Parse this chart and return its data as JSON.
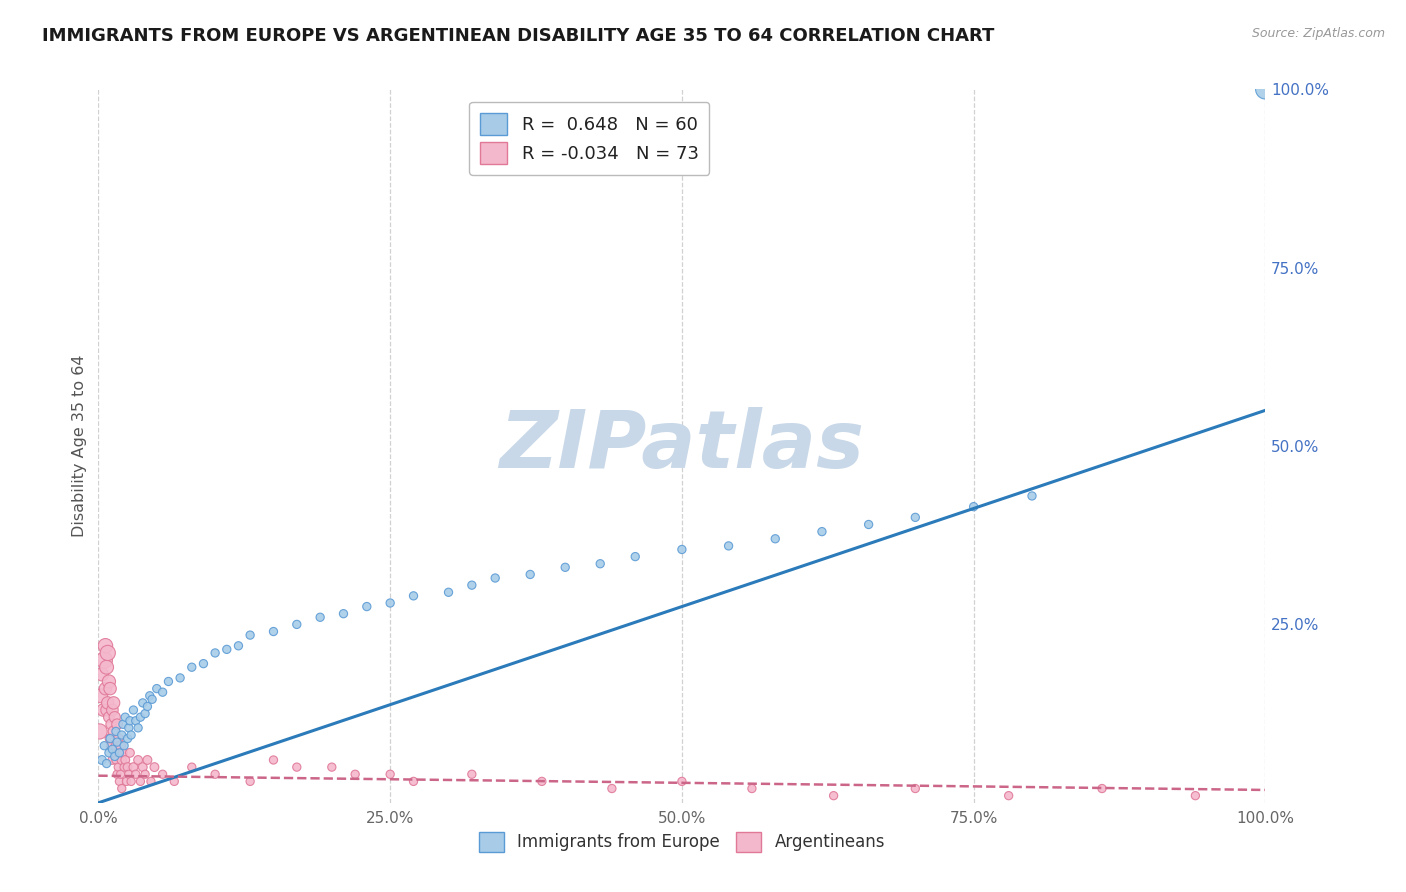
{
  "title": "IMMIGRANTS FROM EUROPE VS ARGENTINEAN DISABILITY AGE 35 TO 64 CORRELATION CHART",
  "source_text": "Source: ZipAtlas.com",
  "ylabel": "Disability Age 35 to 64",
  "xlim": [
    0,
    1.0
  ],
  "ylim": [
    0,
    1.0
  ],
  "xtick_vals": [
    0,
    0.25,
    0.5,
    0.75,
    1.0
  ],
  "xtick_labels": [
    "0.0%",
    "25.0%",
    "50.0%",
    "75.0%",
    "100.0%"
  ],
  "ytick_vals": [
    0.25,
    0.5,
    0.75,
    1.0
  ],
  "ytick_labels": [
    "25.0%",
    "50.0%",
    "75.0%",
    "100.0%"
  ],
  "blue_fill": "#a8cce8",
  "blue_edge": "#5b9bd5",
  "blue_line": "#2b7bba",
  "pink_fill": "#f4b8cc",
  "pink_edge": "#e07898",
  "pink_line": "#cc6688",
  "R_blue": 0.648,
  "N_blue": 60,
  "R_pink": -0.034,
  "N_pink": 73,
  "watermark": "ZIPatlas",
  "watermark_color": "#c8d8e8",
  "bg_color": "#ffffff",
  "grid_color": "#cccccc",
  "title_fontsize": 13,
  "axis_tick_color": "#4472c4",
  "blue_trend_y0": 0.0,
  "blue_trend_y1": 0.55,
  "pink_trend_y0": 0.038,
  "pink_trend_y1": 0.018,
  "blue_scatter_x": [
    0.003,
    0.005,
    0.007,
    0.009,
    0.01,
    0.012,
    0.014,
    0.015,
    0.016,
    0.018,
    0.02,
    0.021,
    0.022,
    0.023,
    0.025,
    0.026,
    0.027,
    0.028,
    0.03,
    0.032,
    0.034,
    0.036,
    0.038,
    0.04,
    0.042,
    0.044,
    0.046,
    0.05,
    0.055,
    0.06,
    0.07,
    0.08,
    0.09,
    0.1,
    0.11,
    0.12,
    0.13,
    0.15,
    0.17,
    0.19,
    0.21,
    0.23,
    0.25,
    0.27,
    0.3,
    0.32,
    0.34,
    0.37,
    0.4,
    0.43,
    0.46,
    0.5,
    0.54,
    0.58,
    0.62,
    0.66,
    0.7,
    0.75,
    0.8,
    1.0
  ],
  "blue_scatter_y": [
    0.06,
    0.08,
    0.055,
    0.07,
    0.09,
    0.075,
    0.065,
    0.1,
    0.085,
    0.07,
    0.095,
    0.11,
    0.08,
    0.12,
    0.09,
    0.105,
    0.115,
    0.095,
    0.13,
    0.115,
    0.105,
    0.12,
    0.14,
    0.125,
    0.135,
    0.15,
    0.145,
    0.16,
    0.155,
    0.17,
    0.175,
    0.19,
    0.195,
    0.21,
    0.215,
    0.22,
    0.235,
    0.24,
    0.25,
    0.26,
    0.265,
    0.275,
    0.28,
    0.29,
    0.295,
    0.305,
    0.315,
    0.32,
    0.33,
    0.335,
    0.345,
    0.355,
    0.36,
    0.37,
    0.38,
    0.39,
    0.4,
    0.415,
    0.43,
    1.0
  ],
  "blue_scatter_sizes": [
    40,
    35,
    35,
    35,
    35,
    35,
    35,
    35,
    35,
    35,
    35,
    35,
    35,
    35,
    35,
    35,
    35,
    35,
    35,
    35,
    35,
    35,
    35,
    35,
    35,
    35,
    35,
    35,
    35,
    35,
    35,
    35,
    35,
    35,
    35,
    35,
    35,
    35,
    35,
    35,
    35,
    35,
    35,
    35,
    35,
    35,
    35,
    35,
    35,
    35,
    35,
    35,
    35,
    35,
    35,
    35,
    35,
    35,
    35,
    200
  ],
  "pink_scatter_x": [
    0.001,
    0.002,
    0.003,
    0.004,
    0.005,
    0.006,
    0.006,
    0.007,
    0.007,
    0.008,
    0.008,
    0.009,
    0.009,
    0.01,
    0.01,
    0.011,
    0.011,
    0.012,
    0.012,
    0.013,
    0.013,
    0.014,
    0.014,
    0.015,
    0.015,
    0.016,
    0.016,
    0.017,
    0.017,
    0.018,
    0.018,
    0.019,
    0.019,
    0.02,
    0.02,
    0.021,
    0.022,
    0.023,
    0.024,
    0.025,
    0.026,
    0.027,
    0.028,
    0.03,
    0.032,
    0.034,
    0.036,
    0.038,
    0.04,
    0.042,
    0.045,
    0.048,
    0.055,
    0.065,
    0.08,
    0.1,
    0.13,
    0.17,
    0.22,
    0.27,
    0.32,
    0.38,
    0.44,
    0.5,
    0.56,
    0.63,
    0.7,
    0.78,
    0.86,
    0.94,
    0.15,
    0.2,
    0.25
  ],
  "pink_scatter_y": [
    0.1,
    0.15,
    0.18,
    0.13,
    0.2,
    0.16,
    0.22,
    0.13,
    0.19,
    0.14,
    0.21,
    0.12,
    0.17,
    0.09,
    0.16,
    0.11,
    0.08,
    0.13,
    0.06,
    0.1,
    0.14,
    0.07,
    0.12,
    0.08,
    0.06,
    0.11,
    0.04,
    0.09,
    0.05,
    0.07,
    0.03,
    0.08,
    0.04,
    0.06,
    0.02,
    0.07,
    0.05,
    0.06,
    0.03,
    0.05,
    0.04,
    0.07,
    0.03,
    0.05,
    0.04,
    0.06,
    0.03,
    0.05,
    0.04,
    0.06,
    0.03,
    0.05,
    0.04,
    0.03,
    0.05,
    0.04,
    0.03,
    0.05,
    0.04,
    0.03,
    0.04,
    0.03,
    0.02,
    0.03,
    0.02,
    0.01,
    0.02,
    0.01,
    0.02,
    0.01,
    0.06,
    0.05,
    0.04
  ],
  "pink_scatter_sizes": [
    120,
    100,
    90,
    80,
    140,
    80,
    110,
    70,
    100,
    80,
    120,
    60,
    90,
    50,
    80,
    60,
    50,
    70,
    40,
    60,
    80,
    40,
    65,
    45,
    35,
    60,
    35,
    50,
    35,
    45,
    35,
    50,
    35,
    45,
    35,
    40,
    35,
    40,
    35,
    40,
    35,
    40,
    35,
    40,
    35,
    40,
    35,
    40,
    35,
    40,
    35,
    40,
    35,
    35,
    35,
    35,
    35,
    35,
    35,
    35,
    35,
    35,
    35,
    35,
    35,
    35,
    35,
    35,
    35,
    35,
    35,
    35,
    35
  ]
}
